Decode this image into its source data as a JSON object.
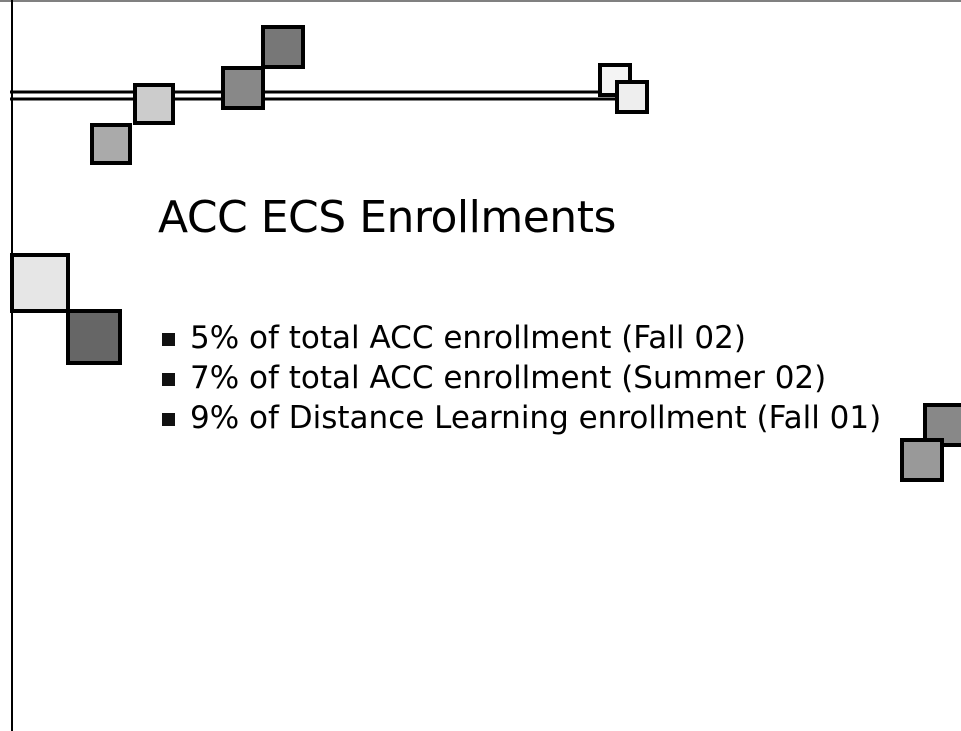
{
  "slide": {
    "title": "ACC ECS Enrollments",
    "bullets": [
      "5% of total ACC enrollment (Fall 02)",
      "7% of total ACC enrollment (Summer 02)",
      "9% of Distance Learning enrollment (Fall 01)"
    ]
  }
}
